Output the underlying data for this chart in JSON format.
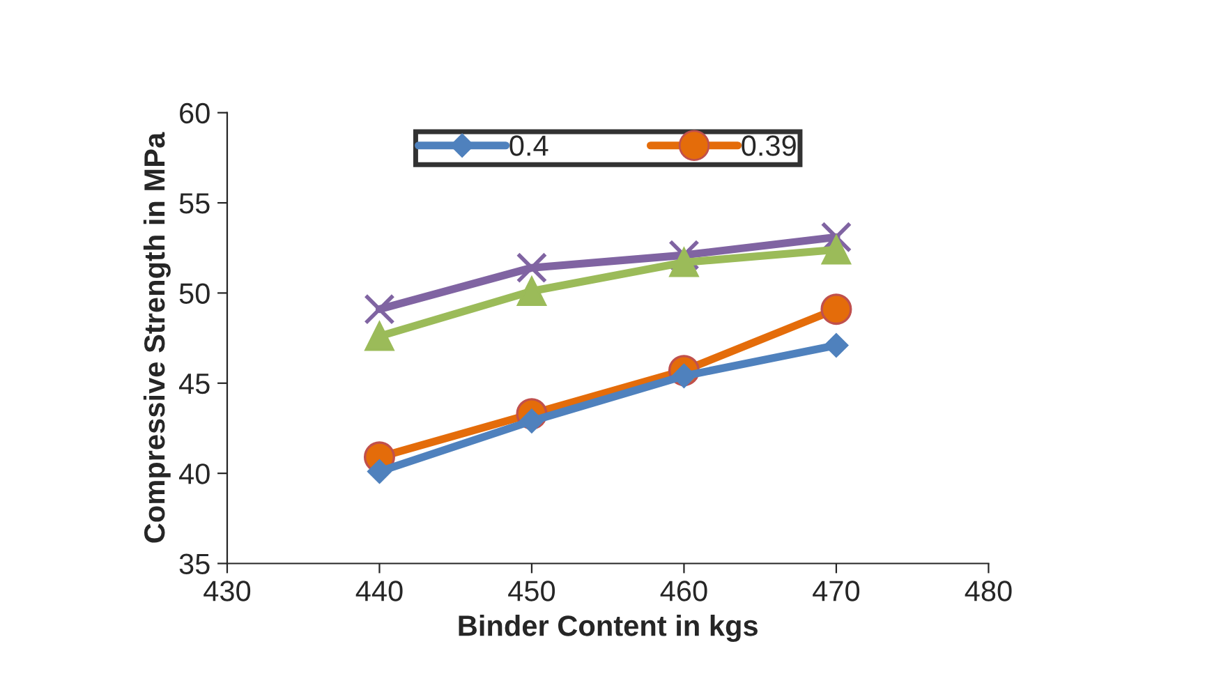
{
  "chart_data": {
    "type": "line",
    "xlabel": "Binder Content in kgs",
    "ylabel": "Compressive Strength in MPa",
    "x": [
      440,
      450,
      460,
      470
    ],
    "series": [
      {
        "name": "0.4",
        "color": "#4f81bd",
        "marker": "diamond",
        "values": [
          40.1,
          42.9,
          45.4,
          47.1
        ]
      },
      {
        "name": "0.39",
        "color": "#e46c0a",
        "marker": "circle",
        "values": [
          40.9,
          43.3,
          45.7,
          49.1
        ]
      },
      {
        "color": "#9bbb59",
        "marker": "triangle",
        "values": [
          47.6,
          50.1,
          51.7,
          52.4
        ]
      },
      {
        "color": "#8064a2",
        "marker": "cross",
        "values": [
          49.1,
          51.4,
          52.1,
          53.1
        ]
      }
    ],
    "xlim": [
      430,
      480
    ],
    "xticks": [
      430,
      440,
      450,
      460,
      470,
      480
    ],
    "ylim": [
      35,
      60
    ],
    "yticks": [
      35,
      40,
      45,
      50,
      55,
      60
    ],
    "grid": false,
    "legend": "top",
    "line_style": "solid"
  }
}
